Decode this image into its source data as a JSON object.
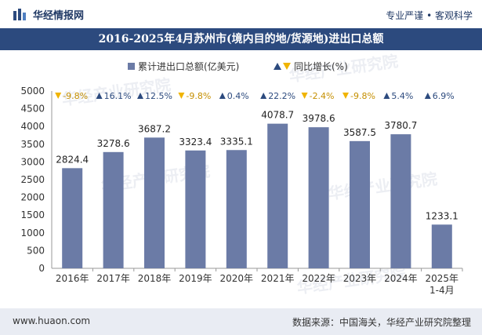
{
  "header": {
    "brand": "华经情报网",
    "tagline": "专业严谨 • 客观科学"
  },
  "title": "2016-2025年4月苏州市(境内目的地/货源地)进出口总额",
  "footer": {
    "website": "www.huaon.com",
    "source": "数据来源：中国海关，华经产业研究院整理"
  },
  "watermark": "华经产业研究院",
  "colors": {
    "bar": "#6b7ba6",
    "up": "#2c4a7e",
    "down": "#f0b400",
    "title_band": "#2c4a7e"
  },
  "chart_data": {
    "type": "bar",
    "categories": [
      "2016年",
      "2017年",
      "2018年",
      "2019年",
      "2020年",
      "2021年",
      "2022年",
      "2023年",
      "2024年",
      "2025年\n1-4月"
    ],
    "series": [
      {
        "name": "累计进出口总额(亿美元)",
        "values": [
          2824.4,
          3278.6,
          3687.2,
          3323.4,
          3335.1,
          4078.7,
          3978.6,
          3587.5,
          3780.7,
          1233.1
        ]
      },
      {
        "name": "同比增长(%)",
        "values": [
          -9.8,
          16.1,
          12.5,
          -9.8,
          0.4,
          22.2,
          -2.4,
          -9.8,
          5.4,
          6.9
        ]
      }
    ],
    "value_labels": [
      "2824.4",
      "3278.6",
      "3687.2",
      "3323.4",
      "3335.1",
      "4078.7",
      "3978.6",
      "3587.5",
      "3780.7",
      "1233.1"
    ],
    "growth_labels": [
      "-9.8%",
      "16.1%",
      "12.5%",
      "-9.8%",
      "0.4%",
      "22.2%",
      "-2.4%",
      "-9.8%",
      "5.4%",
      "6.9%"
    ],
    "ylim": [
      0,
      5000
    ],
    "yticks": [
      0,
      500,
      1000,
      1500,
      2000,
      2500,
      3000,
      3500,
      4000,
      4500,
      5000
    ],
    "legend_position": "top-center"
  }
}
